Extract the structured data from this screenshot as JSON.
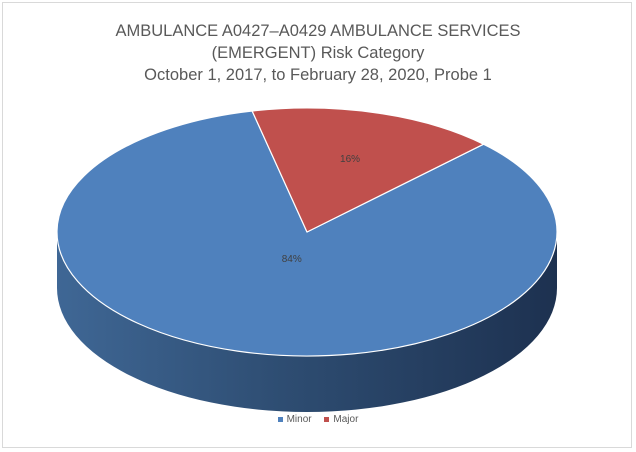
{
  "chart_data": {
    "type": "pie",
    "title_lines": [
      "AMBULANCE A0427–A0429 AMBULANCE SERVICES",
      "(EMERGENT) Risk Category",
      "October 1, 2017, to February 28, 2020, Probe 1"
    ],
    "categories": [
      "Minor",
      "Major"
    ],
    "values": [
      84,
      16
    ],
    "data_labels": [
      "84%",
      "16%"
    ],
    "colors": [
      "#4f81bd",
      "#c0504d"
    ],
    "legend_position": "bottom",
    "style": "3d"
  }
}
